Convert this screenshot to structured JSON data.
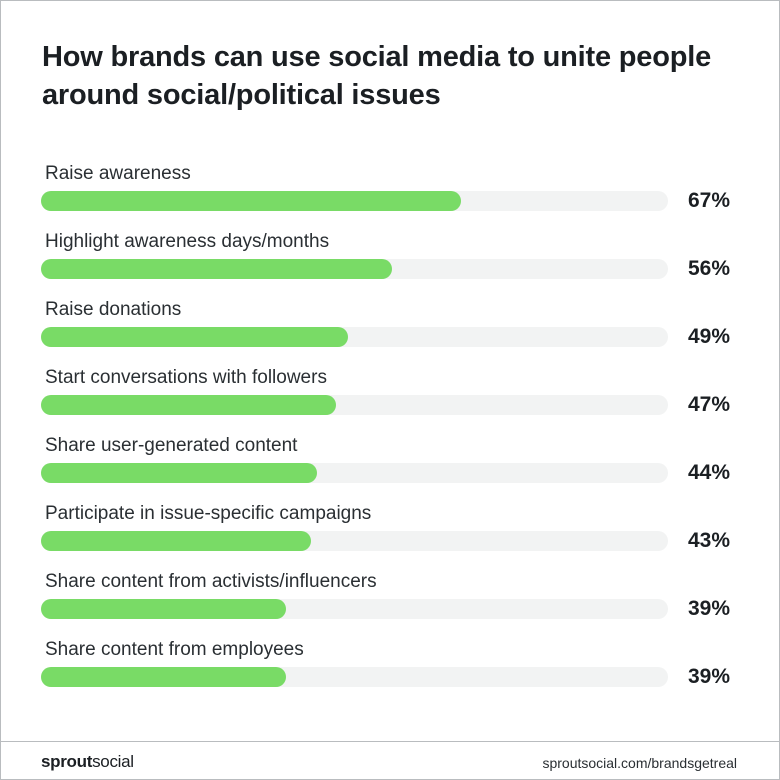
{
  "chart_data": {
    "type": "bar",
    "title": "How brands can use social media to unite people around social/political issues",
    "categories": [
      "Raise awareness",
      "Highlight awareness days/months",
      "Raise donations",
      "Start conversations with followers",
      "Share user-generated content",
      "Participate in issue-specific campaigns",
      "Share content from activists/influencers",
      "Share content from employees"
    ],
    "values": [
      67,
      56,
      49,
      47,
      44,
      43,
      39,
      39
    ],
    "value_labels": [
      "67%",
      "56%",
      "49%",
      "47%",
      "44%",
      "43%",
      "39%",
      "39%"
    ],
    "xlim": [
      0,
      100
    ],
    "orientation": "horizontal",
    "grid": false,
    "colors": {
      "bar": "#79db66",
      "track": "#f2f3f3",
      "text": "#1b1f23"
    }
  },
  "footer": {
    "brand_part1": "sprout",
    "brand_part2": "social",
    "url": "sproutsocial.com/brandsgetreal"
  }
}
